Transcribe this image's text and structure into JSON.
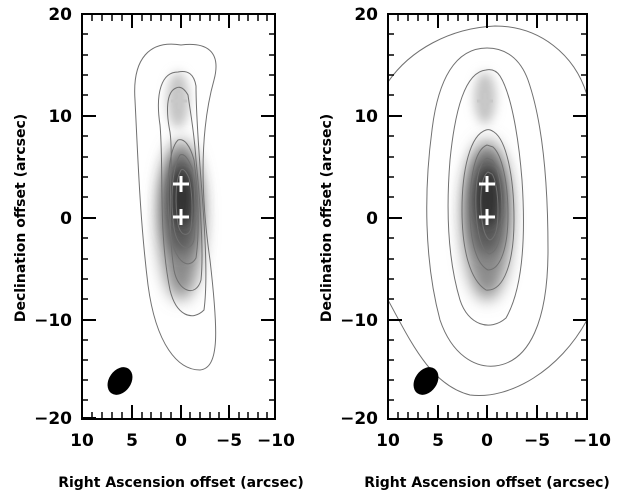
{
  "chart_data": [
    {
      "type": "contour",
      "panel": "left",
      "xlabel": "",
      "ylabel": "Declination offset (arcsec)",
      "xlim": [
        10,
        -10
      ],
      "ylim": [
        -20,
        20
      ],
      "x_ticks": [
        "10",
        "5",
        "0",
        "−5",
        "−10"
      ],
      "y_ticks": [
        "20",
        "10",
        "0",
        "−10",
        "−20"
      ],
      "grid": false,
      "markers": [
        {
          "x": 0,
          "y": 11.5,
          "symbol": "plus",
          "color": "#c8c8c8"
        },
        {
          "x": 0,
          "y": 3.3,
          "symbol": "plus",
          "color": "#ffffff"
        },
        {
          "x": 0,
          "y": 0.0,
          "symbol": "plus",
          "color": "#ffffff"
        }
      ],
      "beam": {
        "x": 6,
        "y": -16,
        "shape": "ellipse"
      },
      "contour_color": "#707070",
      "greyscale_colors": [
        "#ffffff",
        "#222222"
      ]
    },
    {
      "type": "contour",
      "panel": "right",
      "xlabel": "",
      "ylabel": "Declination offset (arcsec)",
      "xlim": [
        10,
        -10
      ],
      "ylim": [
        -20,
        20
      ],
      "x_ticks": [
        "10",
        "5",
        "0",
        "−5",
        "−10"
      ],
      "y_ticks": [
        "20",
        "10",
        "0",
        "−10",
        "−20"
      ],
      "grid": false,
      "markers": [
        {
          "x": 0,
          "y": 11.5,
          "symbol": "plus",
          "color": "#c8c8c8"
        },
        {
          "x": 0,
          "y": 3.3,
          "symbol": "plus",
          "color": "#ffffff"
        },
        {
          "x": 0,
          "y": 0.0,
          "symbol": "plus",
          "color": "#ffffff"
        }
      ],
      "beam": {
        "x": 6,
        "y": -16,
        "shape": "ellipse"
      },
      "contour_color": "#707070",
      "greyscale_colors": [
        "#ffffff",
        "#222222"
      ]
    }
  ],
  "labels": {
    "xlabel_left": "Right Ascension offset (arcsec)",
    "xlabel_right": "Right Ascension offset (arcsec)"
  }
}
